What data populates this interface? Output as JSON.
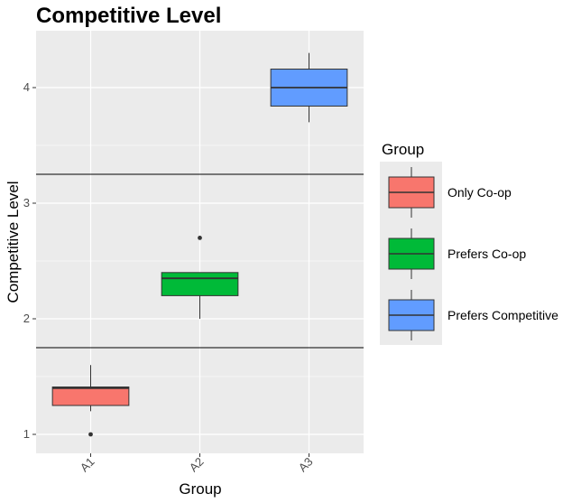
{
  "chart_data": {
    "type": "box",
    "title": "Competitive Level",
    "xlabel": "Group",
    "ylabel": "Competitive Level",
    "categories": [
      "A1",
      "A2",
      "A3"
    ],
    "ylim": [
      0.85,
      4.5
    ],
    "yticks": [
      1,
      2,
      3,
      4
    ],
    "grid": true,
    "boxes": [
      {
        "category": "A1",
        "group": "Only Co-op",
        "color": "#F8766D",
        "min": 1.2,
        "q1": 1.25,
        "median": 1.4,
        "q3": 1.41,
        "max": 1.6,
        "outliers": [
          1.0
        ]
      },
      {
        "category": "A2",
        "group": "Prefers Co-op",
        "color": "#00BA38",
        "min": 2.0,
        "q1": 2.2,
        "median": 2.35,
        "q3": 2.4,
        "max": 2.4,
        "outliers": [
          2.7
        ]
      },
      {
        "category": "A3",
        "group": "Prefers Competitive",
        "color": "#619CFF",
        "min": 3.7,
        "q1": 3.84,
        "median": 4.0,
        "q3": 4.16,
        "max": 4.3,
        "outliers": []
      }
    ],
    "hlines": [
      1.75,
      3.25
    ],
    "legend": {
      "title": "Group",
      "position": "right",
      "entries": [
        {
          "label": "Only Co-op",
          "color": "#F8766D"
        },
        {
          "label": "Prefers Co-op",
          "color": "#00BA38"
        },
        {
          "label": "Prefers Competitive",
          "color": "#619CFF"
        }
      ]
    }
  }
}
